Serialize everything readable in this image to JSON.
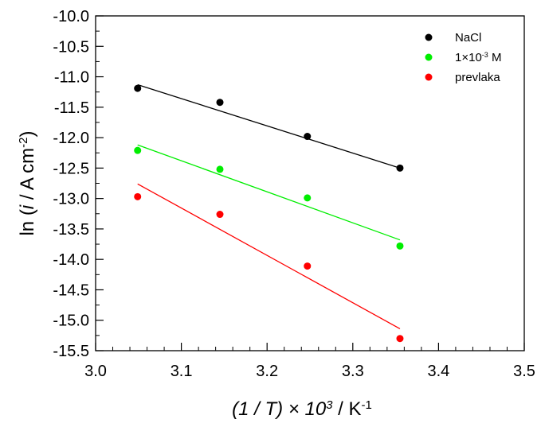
{
  "chart_data": {
    "type": "scatter",
    "xlabel": {
      "parts": [
        {
          "text": "(1 / ",
          "style": "italic"
        },
        {
          "text": "T",
          "style": "italic"
        },
        {
          "text": ") × 10",
          "style": "italic"
        },
        {
          "text": "3",
          "style": "italic-sup"
        },
        {
          "text": " / K",
          "style": "normal"
        },
        {
          "text": "-1",
          "style": "sup"
        }
      ]
    },
    "ylabel": {
      "parts": [
        {
          "text": "ln (",
          "style": "normal"
        },
        {
          "text": "i",
          "style": "italic"
        },
        {
          "text": " / A cm",
          "style": "normal"
        },
        {
          "text": "-2",
          "style": "sup"
        },
        {
          "text": ")",
          "style": "normal"
        }
      ]
    },
    "xlim": [
      3.0,
      3.5
    ],
    "ylim": [
      -15.5,
      -10.0
    ],
    "x_ticks": [
      "3.0",
      "3.1",
      "3.2",
      "3.3",
      "3.4",
      "3.5"
    ],
    "y_ticks": [
      "-10.0",
      "-10.5",
      "-11.0",
      "-11.5",
      "-12.0",
      "-12.5",
      "-13.0",
      "-13.5",
      "-14.0",
      "-14.5",
      "-15.0",
      "-15.5"
    ],
    "grid": false,
    "legend_position": "top-right",
    "series": [
      {
        "name": "NaCl",
        "color": "#000000",
        "x": [
          3.049,
          3.145,
          3.247,
          3.355
        ],
        "y": [
          -11.19,
          -11.42,
          -11.98,
          -12.5
        ],
        "fit": {
          "x": [
            3.049,
            3.355
          ],
          "y": [
            -11.13,
            -12.5
          ]
        }
      },
      {
        "name": "1×10⁻³ M",
        "name_parts": [
          {
            "text": "1×10",
            "style": "normal"
          },
          {
            "text": "-3",
            "style": "sup"
          },
          {
            "text": " M",
            "style": "normal"
          }
        ],
        "color": "#00ee00",
        "x": [
          3.049,
          3.145,
          3.247,
          3.355
        ],
        "y": [
          -12.21,
          -12.52,
          -12.99,
          -13.78
        ],
        "fit": {
          "x": [
            3.049,
            3.355
          ],
          "y": [
            -12.12,
            -13.68
          ]
        }
      },
      {
        "name": "prevlaka",
        "color": "#ff0000",
        "x": [
          3.049,
          3.145,
          3.247,
          3.355
        ],
        "y": [
          -12.97,
          -13.26,
          -14.11,
          -15.3
        ],
        "fit": {
          "x": [
            3.049,
            3.355
          ],
          "y": [
            -12.76,
            -15.14
          ]
        }
      }
    ]
  }
}
